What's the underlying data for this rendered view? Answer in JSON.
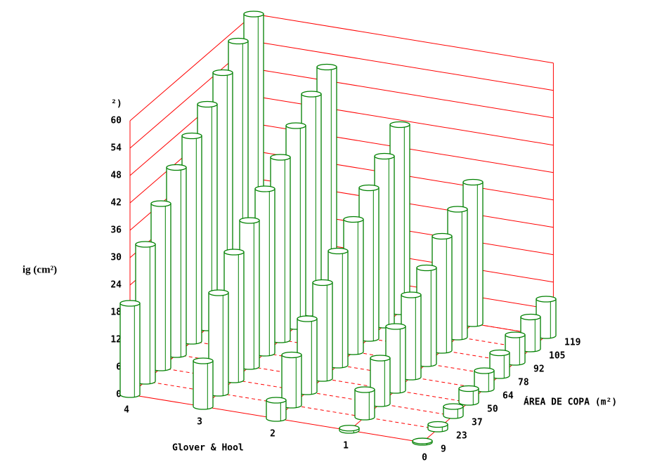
{
  "chart_data": {
    "type": "bar3d",
    "y_label": "ig (cm²)",
    "y_stub": "²)",
    "x_label": "Glover & Hool",
    "z_label": "ÁREA DE COPA (m²)",
    "categories": [
      "9",
      "23",
      "37",
      "50",
      "64",
      "78",
      "92",
      "105",
      "119"
    ],
    "series": [
      {
        "name": "4",
        "color": "#008000",
        "values": [
          20,
          30,
          36,
          41,
          45,
          49,
          53,
          57,
          60
        ]
      },
      {
        "name": "3",
        "color": "#008000",
        "values": [
          10,
          22,
          28,
          32,
          36,
          40,
          44,
          48,
          51
        ]
      },
      {
        "name": "2",
        "color": "#008000",
        "values": [
          4,
          11,
          16,
          21,
          25,
          29,
          33,
          37,
          41
        ]
      },
      {
        "name": "1",
        "color": "#008000",
        "values": [
          0.5,
          6,
          10,
          14,
          18,
          21,
          25,
          28,
          31
        ]
      },
      {
        "name": "0",
        "color": "#008000",
        "values": [
          0.3,
          1,
          2,
          3,
          4,
          5,
          6,
          7,
          8
        ]
      }
    ],
    "ylim": [
      0,
      60
    ],
    "yticks": [
      0,
      6,
      12,
      18,
      24,
      30,
      36,
      42,
      48,
      54,
      60
    ],
    "grid": true,
    "grid_color": "#ff0000"
  }
}
